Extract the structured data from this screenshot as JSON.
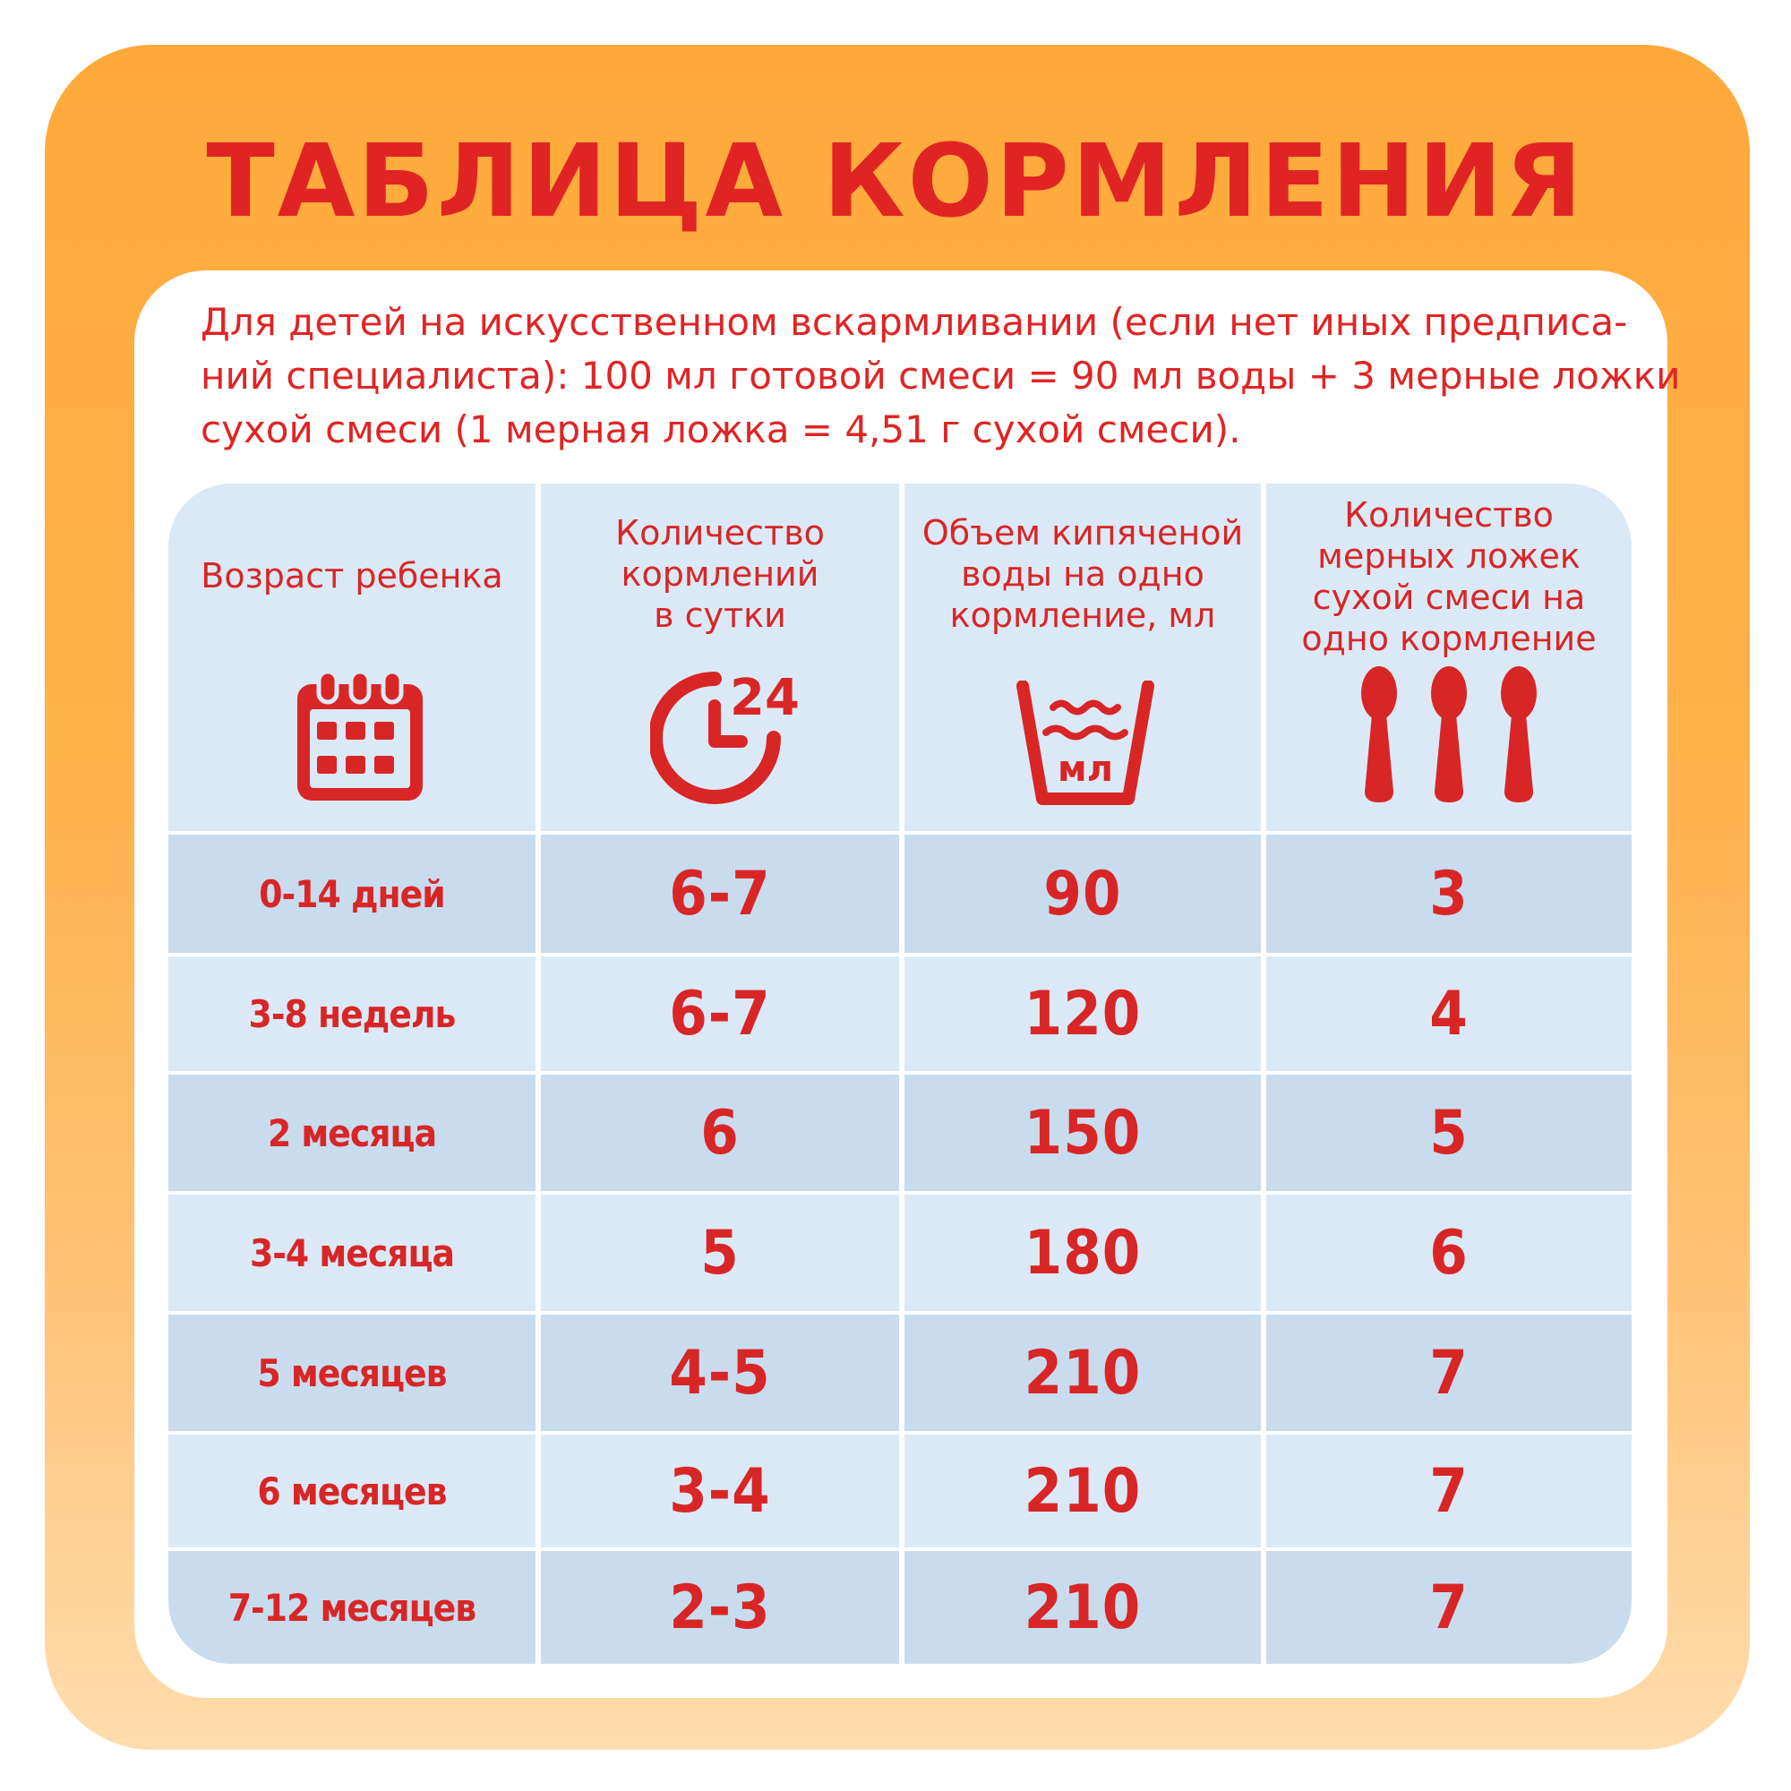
{
  "title": "ТАБЛИЦА КОРМЛЕНИЯ",
  "intro_lines": [
    "Для детей на искусственном вскармливании (если нет иных предписа-",
    "ний специалиста): 100 мл готовой смеси = 90 мл воды + 3 мерные ложки",
    "сухой смеси (1 мерная ложка = 4,51 г сухой смеси)."
  ],
  "columns": [
    {
      "label_lines": [
        "Возраст ребенка"
      ],
      "icon": "calendar-icon"
    },
    {
      "label_lines": [
        "Количество",
        "кормлений",
        "в сутки"
      ],
      "icon": "clock-24-icon"
    },
    {
      "label_lines": [
        "Объем кипяченой",
        "воды на одно",
        "кормление, мл"
      ],
      "icon": "water-container-icon",
      "icon_text": "мл"
    },
    {
      "label_lines": [
        "Количество",
        "мерных ложек",
        "сухой смеси на",
        "одно кормление"
      ],
      "icon": "spoons-icon"
    }
  ],
  "rows": [
    {
      "age": "0-14 дней",
      "feedings": "6-7",
      "water": "90",
      "spoons": "3"
    },
    {
      "age": "3-8 недель",
      "feedings": "6-7",
      "water": "120",
      "spoons": "4"
    },
    {
      "age": "2 месяца",
      "feedings": "6",
      "water": "150",
      "spoons": "5"
    },
    {
      "age": "3-4 месяца",
      "feedings": "5",
      "water": "180",
      "spoons": "6"
    },
    {
      "age": "5 месяцев",
      "feedings": "4-5",
      "water": "210",
      "spoons": "7"
    },
    {
      "age": "6 месяцев",
      "feedings": "3-4",
      "water": "210",
      "spoons": "7"
    },
    {
      "age": "7-12 месяцев",
      "feedings": "2-3",
      "water": "210",
      "spoons": "7"
    }
  ],
  "colors": {
    "accent": "#e02424",
    "row_dark": "#c9dcee",
    "row_light": "#dbe9f6",
    "frame_top": "#ffa93a",
    "frame_bottom": "#ffdcae"
  }
}
